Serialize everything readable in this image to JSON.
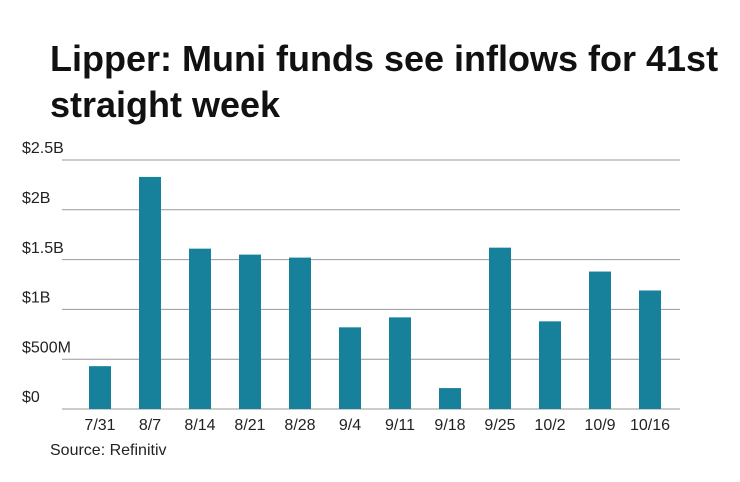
{
  "chart_data": {
    "type": "bar",
    "title": "Lipper: Muni funds see inflows for 41st straight week",
    "source": "Source: Refinitiv",
    "categories": [
      "7/31",
      "8/7",
      "8/14",
      "8/21",
      "8/28",
      "9/4",
      "9/11",
      "9/18",
      "9/25",
      "10/2",
      "10/9",
      "10/16"
    ],
    "values": [
      0.43,
      2.33,
      1.61,
      1.55,
      1.52,
      0.82,
      0.92,
      0.21,
      1.62,
      0.88,
      1.38,
      1.19
    ],
    "color": "#17809b",
    "ylim": [
      0,
      2.5
    ],
    "yticks": [
      {
        "value": 0,
        "label": "$0"
      },
      {
        "value": 0.5,
        "label": "$500M"
      },
      {
        "value": 1,
        "label": "$1B"
      },
      {
        "value": 1.5,
        "label": "$1.5B"
      },
      {
        "value": 2,
        "label": "$2B"
      },
      {
        "value": 2.5,
        "label": "$2.5B"
      }
    ],
    "grid": true
  }
}
